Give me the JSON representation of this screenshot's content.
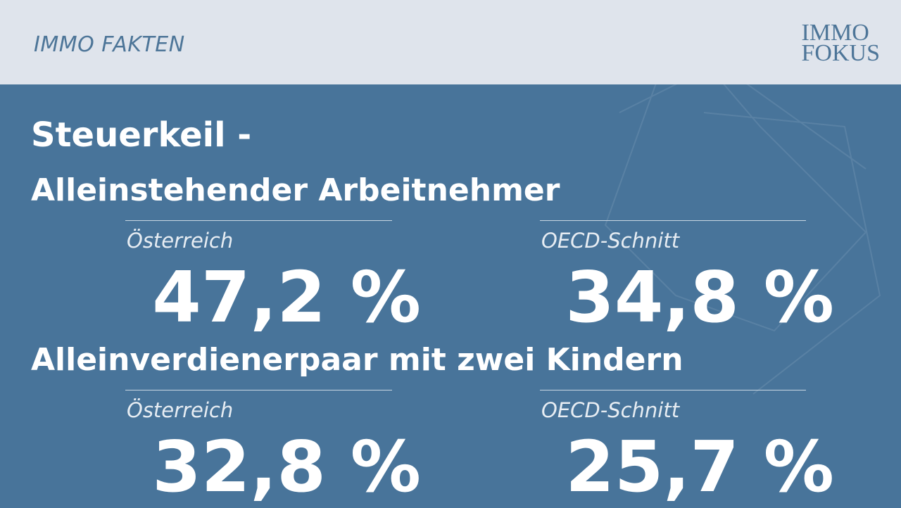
{
  "header": {
    "title": "IMMO FAKTEN",
    "logo": [
      "IMMO",
      "FOKUS"
    ]
  },
  "title": "Steuerkeil -",
  "sections": [
    {
      "heading": "Alleinstehender Arbeitnehmer",
      "items": [
        {
          "label": "Österreich",
          "value": "47,2 %"
        },
        {
          "label": "OECD-Schnitt",
          "value": "34,8 %"
        }
      ]
    },
    {
      "heading": "Alleinverdienerpaar mit zwei Kindern",
      "items": [
        {
          "label": "Österreich",
          "value": "32,8 %"
        },
        {
          "label": "OECD-Schnitt",
          "value": "25,7 %"
        }
      ]
    }
  ]
}
